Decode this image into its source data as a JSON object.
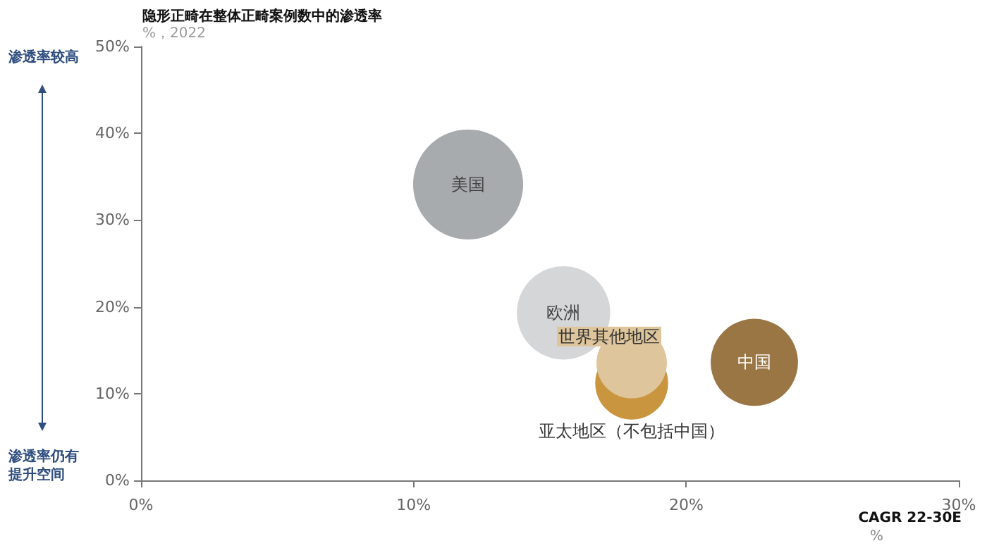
{
  "chart_data": {
    "type": "bubble",
    "title": "隐形正畸在整体正畸案例数中的渗透率",
    "subtitle": "%，2022",
    "xlabel": "CAGR 22-30E\n%",
    "annotations": [
      "渗透率较高",
      "渗透率仍有提升空间"
    ],
    "series": [
      {
        "name": "美国",
        "color": "#a7abad",
        "x": [
          12
        ],
        "values": [
          34.1
        ],
        "sizes": [
          1
        ]
      },
      {
        "name": "欧洲",
        "color": "#d5d6d8",
        "x": [
          15.5
        ],
        "values": [
          19.3
        ],
        "sizes": [
          0.72
        ]
      },
      {
        "name": "亚太地区（不包括中国）",
        "color": "#c9953f",
        "x": [
          18
        ],
        "values": [
          11.2
        ],
        "sizes": [
          0.44
        ]
      },
      {
        "name": "世界其他地区",
        "color": "#dfc59b",
        "x": [
          18
        ],
        "values": [
          13.5
        ],
        "sizes": [
          0.41
        ]
      },
      {
        "name": "中国",
        "color": "#9b7645",
        "x": [
          22.5
        ],
        "values": [
          13.6
        ],
        "sizes": [
          0.63
        ]
      }
    ],
    "xlim": [
      0,
      30
    ],
    "xticks": [
      {
        "value": 0,
        "label": "0%"
      },
      {
        "value": 10,
        "label": "10%"
      },
      {
        "value": 20,
        "label": "20%"
      },
      {
        "value": 30,
        "label": "30%"
      }
    ],
    "ylim": [
      0,
      50
    ],
    "yticks": [
      {
        "value": 0,
        "label": "0%"
      },
      {
        "value": 10,
        "label": "10%"
      },
      {
        "value": 20,
        "label": "20%"
      },
      {
        "value": 30,
        "label": "30%"
      },
      {
        "value": 40,
        "label": "40%"
      },
      {
        "value": 50,
        "label": "50%"
      }
    ],
    "grid": false,
    "legend": false
  }
}
